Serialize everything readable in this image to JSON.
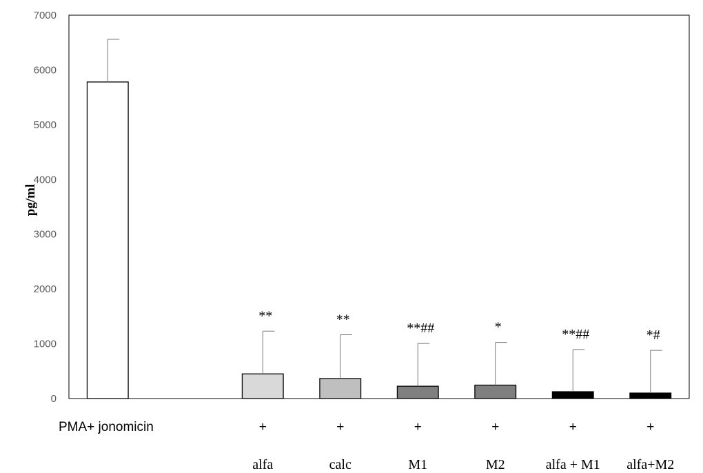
{
  "chart_data": {
    "type": "bar",
    "ylabel": "pg/ml",
    "ylim": [
      0,
      7000
    ],
    "yticks": [
      "0",
      "1000",
      "2000",
      "3000",
      "4000",
      "5000",
      "6000",
      "7000"
    ],
    "grid": false,
    "row_label": "PMA+ jonomicin",
    "categories": [
      "",
      "",
      "alfa",
      "calc",
      "M1",
      "M2",
      "alfa + M1",
      "alfa+M2"
    ],
    "plus_marks": [
      "",
      "",
      "+",
      "+",
      "+",
      "+",
      "+",
      "+"
    ],
    "values": [
      5780,
      0,
      450,
      365,
      225,
      245,
      125,
      100
    ],
    "errors": [
      780,
      0,
      780,
      800,
      780,
      780,
      770,
      780
    ],
    "significance": [
      "",
      "",
      "**",
      "**",
      "**##",
      "*",
      "**##",
      "*#"
    ],
    "colors": [
      "#ffffff",
      "#ffffff",
      "#d9d9d9",
      "#bfbfbf",
      "#7f7f7f",
      "#7f7f7f",
      "#000000",
      "#000000"
    ]
  }
}
